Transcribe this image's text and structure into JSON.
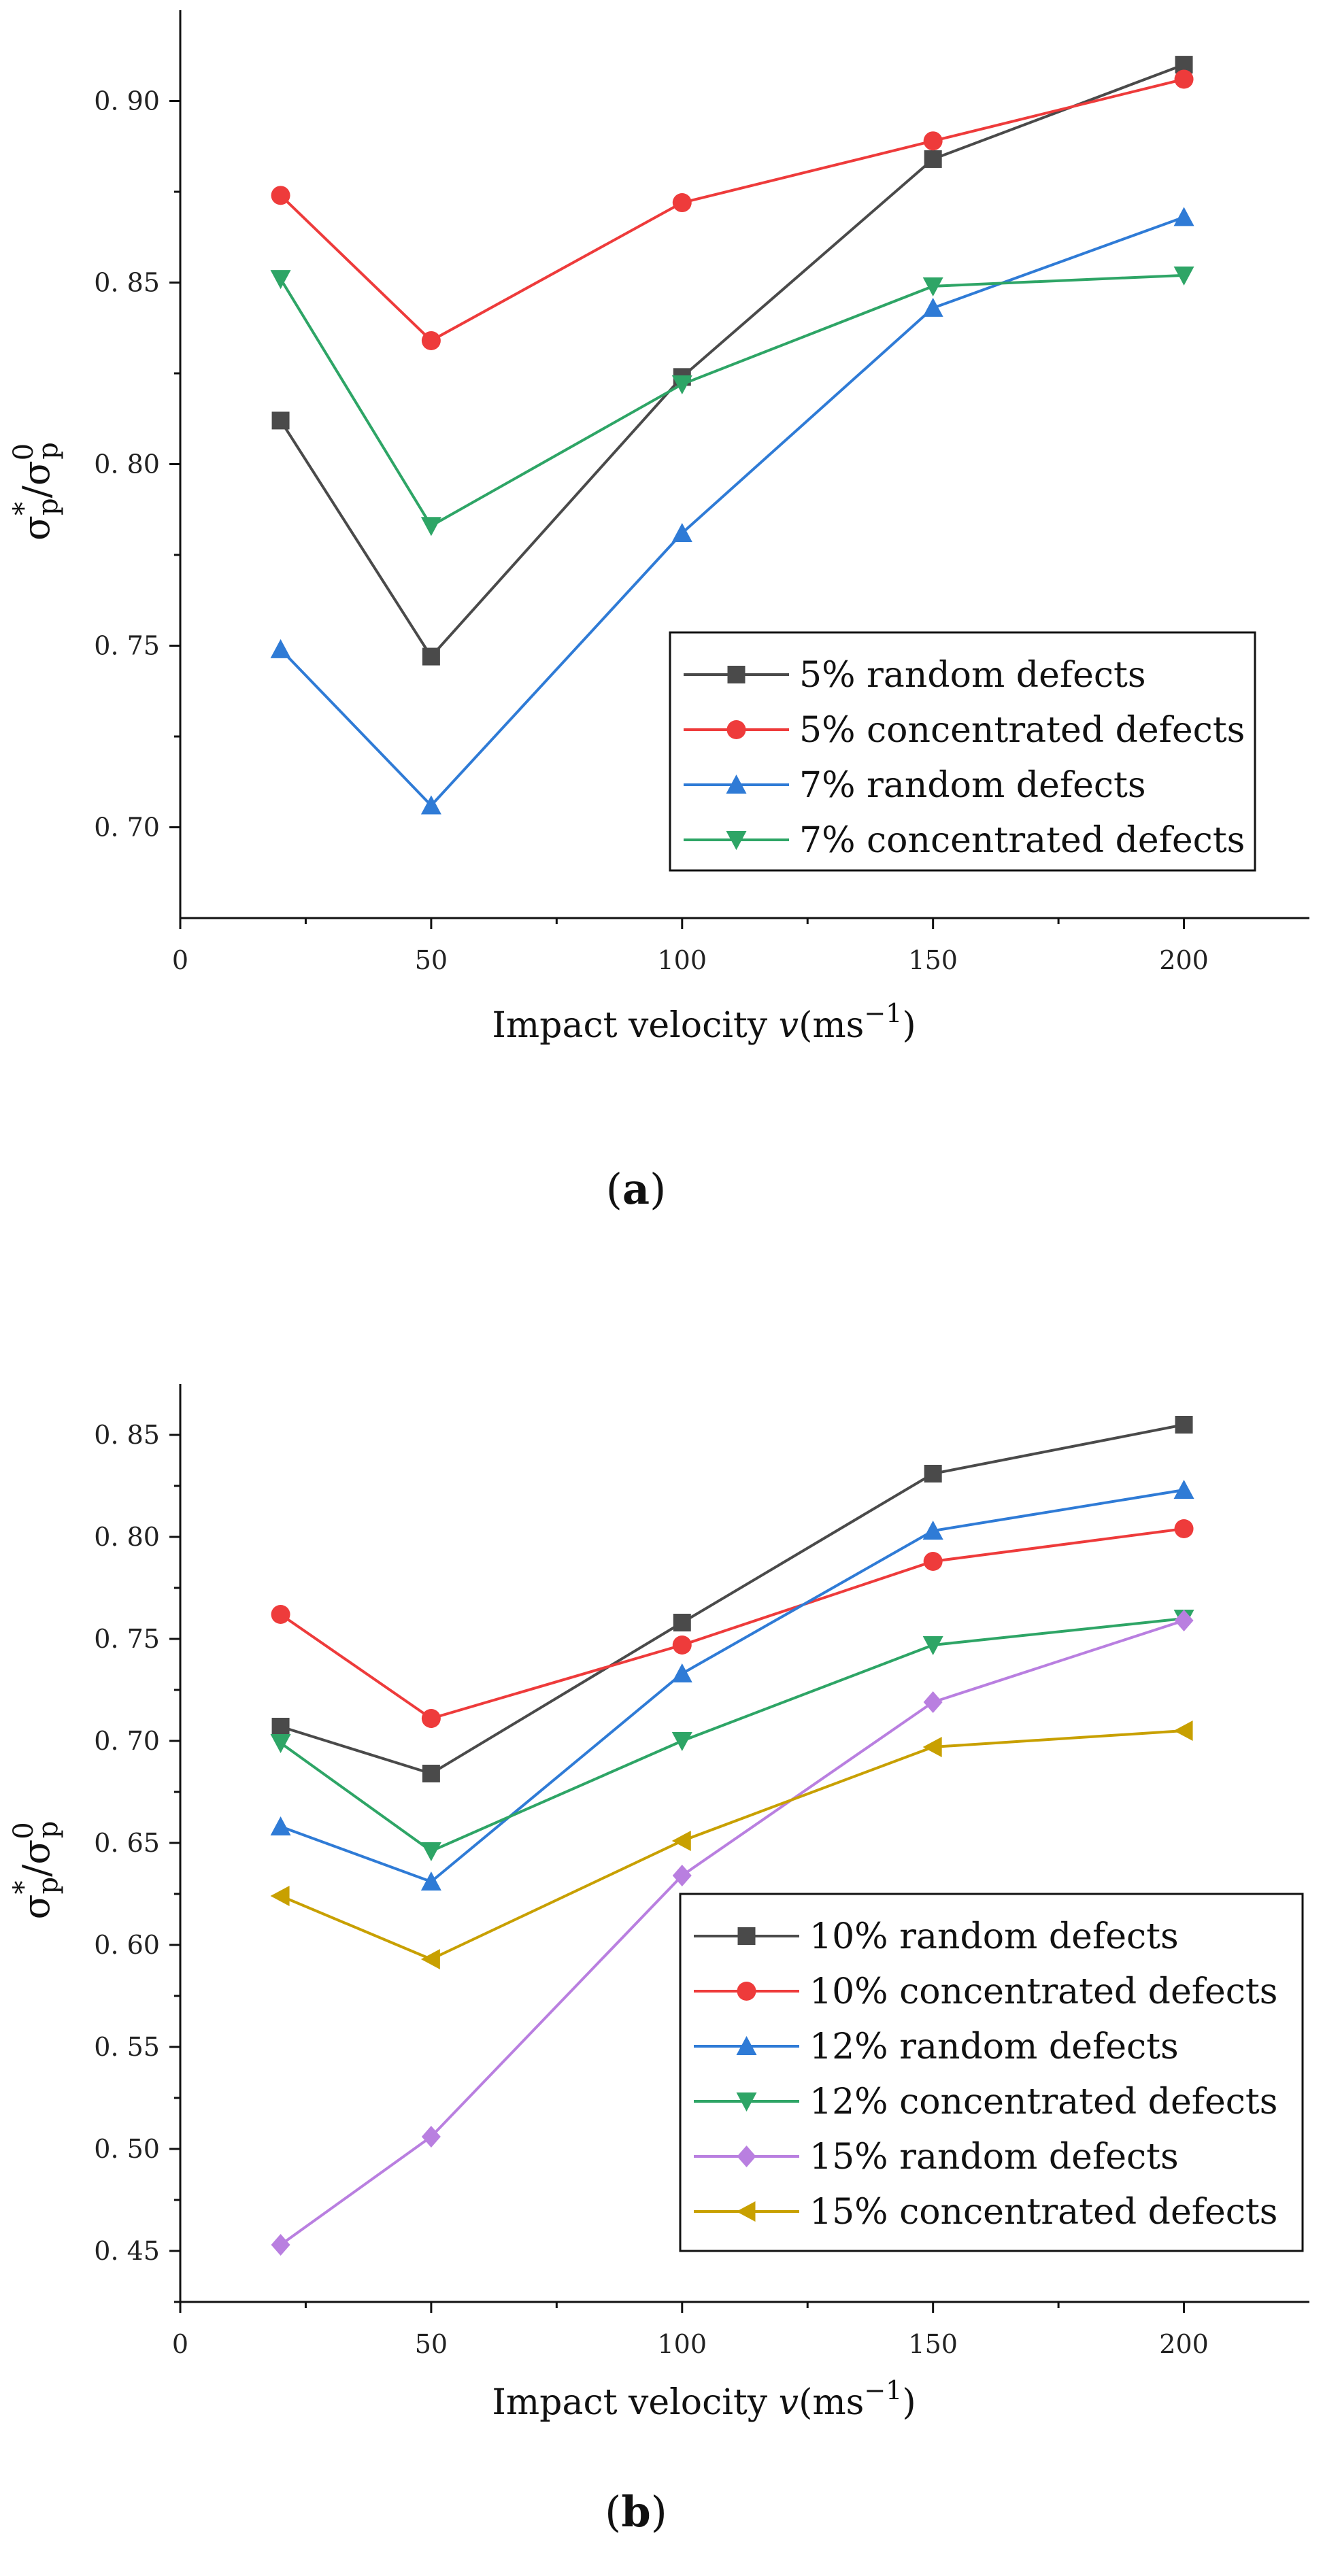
{
  "chart_data": [
    {
      "type": "line",
      "panel_label": "a",
      "title": "",
      "xlabel_main": "Impact velocity ",
      "xlabel_var": "v",
      "xlabel_unit_open": "(ms",
      "xlabel_unit_sup": "−1",
      "xlabel_unit_close": ")",
      "ylabel_parts": {
        "base1": "σ",
        "sup1": "*",
        "sub1": "p",
        "slash": "/",
        "base2": "σ",
        "sup2": "0",
        "sub2": "p"
      },
      "xlim": [
        0,
        225
      ],
      "ylim": [
        0.675,
        0.925
      ],
      "x_ticks": [
        0,
        50,
        100,
        150,
        200
      ],
      "x_tick_labels": [
        "0",
        "50",
        "100",
        "150",
        "200"
      ],
      "y_ticks": [
        0.7,
        0.75,
        0.8,
        0.85,
        0.9
      ],
      "y_tick_labels": [
        "0. 70",
        "0. 75",
        "0. 80",
        "0. 85",
        "0. 90"
      ],
      "legend_position": "bottom-right",
      "series": [
        {
          "name": "5% random defects",
          "color": "#4a4a4a",
          "marker": "square",
          "x": [
            20,
            50,
            100,
            150,
            200
          ],
          "y": [
            0.812,
            0.747,
            0.824,
            0.884,
            0.91
          ]
        },
        {
          "name": "5% concentrated defects",
          "color": "#ee3b3b",
          "marker": "circle",
          "x": [
            20,
            50,
            100,
            150,
            200
          ],
          "y": [
            0.874,
            0.834,
            0.872,
            0.889,
            0.906
          ]
        },
        {
          "name": "7% random defects",
          "color": "#2f7bd6",
          "marker": "triangle-up",
          "x": [
            20,
            50,
            100,
            150,
            200
          ],
          "y": [
            0.749,
            0.706,
            0.781,
            0.843,
            0.868
          ]
        },
        {
          "name": "7% concentrated defects",
          "color": "#2ea566",
          "marker": "triangle-down",
          "x": [
            20,
            50,
            100,
            150,
            200
          ],
          "y": [
            0.851,
            0.783,
            0.822,
            0.849,
            0.852
          ]
        }
      ]
    },
    {
      "type": "line",
      "panel_label": "b",
      "title": "",
      "xlabel_main": "Impact velocity ",
      "xlabel_var": "v",
      "xlabel_unit_open": "(ms",
      "xlabel_unit_sup": "−1",
      "xlabel_unit_close": ")",
      "ylabel_parts": {
        "base1": "σ",
        "sup1": "*",
        "sub1": "p",
        "slash": "/",
        "base2": "σ",
        "sup2": "0",
        "sub2": "p"
      },
      "xlim": [
        0,
        225
      ],
      "ylim": [
        0.425,
        0.875
      ],
      "x_ticks": [
        0,
        50,
        100,
        150,
        200
      ],
      "x_tick_labels": [
        "0",
        "50",
        "100",
        "150",
        "200"
      ],
      "y_ticks": [
        0.45,
        0.5,
        0.55,
        0.6,
        0.65,
        0.7,
        0.75,
        0.8,
        0.85
      ],
      "y_tick_labels": [
        "0. 45",
        "0. 50",
        "0. 55",
        "0. 60",
        "0. 65",
        "0. 70",
        "0. 75",
        "0. 80",
        "0. 85"
      ],
      "legend_position": "bottom-right",
      "series": [
        {
          "name": "10% random defects",
          "color": "#4a4a4a",
          "marker": "square",
          "x": [
            20,
            50,
            100,
            150,
            200
          ],
          "y": [
            0.707,
            0.684,
            0.758,
            0.831,
            0.855
          ]
        },
        {
          "name": "10% concentrated defects",
          "color": "#ee3b3b",
          "marker": "circle",
          "x": [
            20,
            50,
            100,
            150,
            200
          ],
          "y": [
            0.762,
            0.711,
            0.747,
            0.788,
            0.804
          ]
        },
        {
          "name": "12% random defects",
          "color": "#2f7bd6",
          "marker": "triangle-up",
          "x": [
            20,
            50,
            100,
            150,
            200
          ],
          "y": [
            0.658,
            0.631,
            0.733,
            0.803,
            0.823
          ]
        },
        {
          "name": "12% concentrated defects",
          "color": "#2ea566",
          "marker": "triangle-down",
          "x": [
            20,
            50,
            100,
            150,
            200
          ],
          "y": [
            0.699,
            0.646,
            0.7,
            0.747,
            0.76
          ]
        },
        {
          "name": "15% random defects",
          "color": "#b97fe0",
          "marker": "diamond",
          "x": [
            20,
            50,
            100,
            150,
            200
          ],
          "y": [
            0.453,
            0.506,
            0.634,
            0.719,
            0.759
          ]
        },
        {
          "name": "15% concentrated defects",
          "color": "#c8a000",
          "marker": "triangle-left",
          "x": [
            20,
            50,
            100,
            150,
            200
          ],
          "y": [
            0.624,
            0.593,
            0.651,
            0.697,
            0.705
          ]
        }
      ]
    }
  ]
}
